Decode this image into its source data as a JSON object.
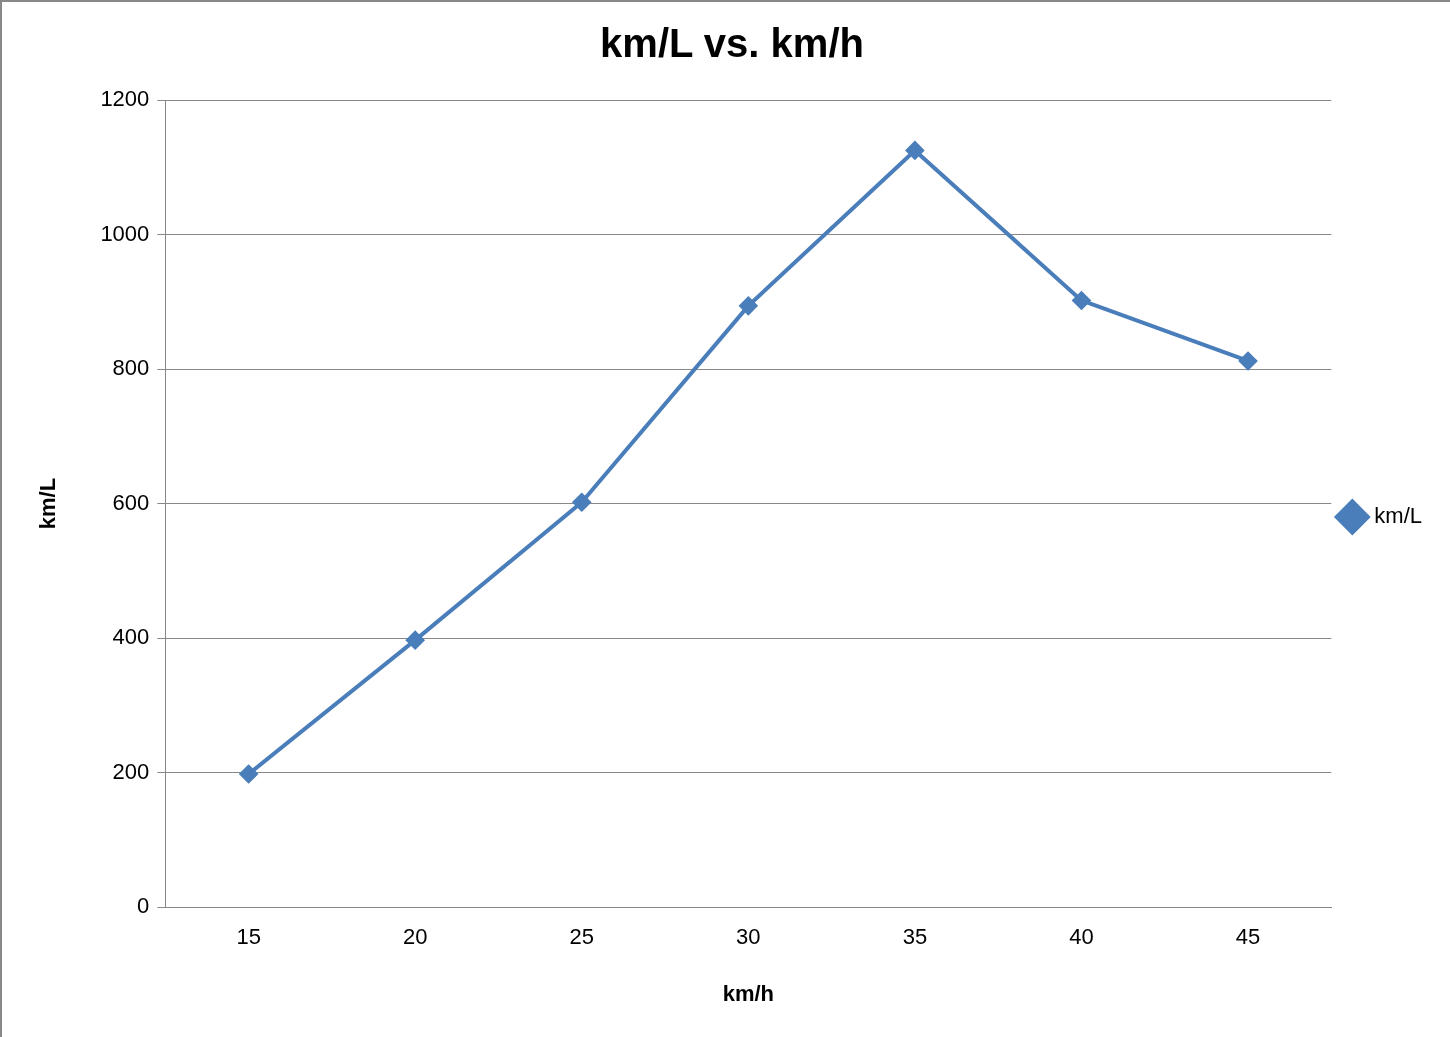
{
  "chart_data": {
    "type": "line",
    "title": "km/L vs. km/h",
    "xlabel": "km/h",
    "ylabel": "km/L",
    "categories": [
      "15",
      "20",
      "25",
      "30",
      "35",
      "40",
      "45"
    ],
    "series": [
      {
        "name": "km/L",
        "color": "#4a7ebb",
        "values": [
          198,
          397,
          602,
          894,
          1125,
          902,
          812
        ]
      }
    ],
    "ylim": [
      0,
      1200
    ],
    "yticks": [
      0,
      200,
      400,
      600,
      800,
      1000,
      1200
    ],
    "grid": "y",
    "legend": "right",
    "marker": "diamond",
    "line_style": "solid"
  }
}
